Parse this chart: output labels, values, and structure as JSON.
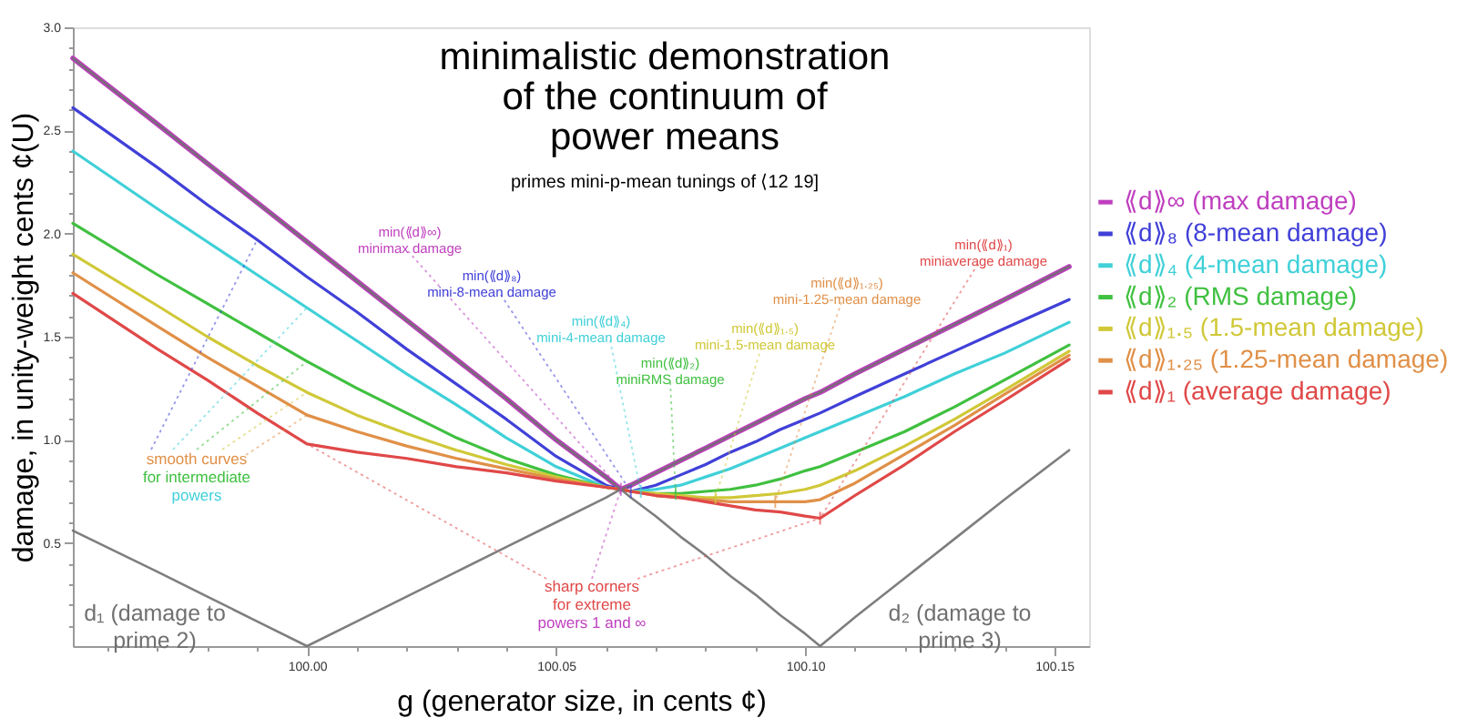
{
  "chart_data": {
    "type": "line",
    "title": "minimalistic demonstration\nof the continuum of\npower means",
    "subtitle": "primes mini-p-mean tunings of ⟨12 19]",
    "xlabel": "g (generator size, in cents ¢)",
    "ylabel": "damage, in unity-weight cents ¢(U)",
    "x": [
      99.953,
      99.97,
      99.98,
      99.99,
      100.0,
      100.01,
      100.02,
      100.03,
      100.04,
      100.05,
      100.06,
      100.063,
      100.065,
      100.07,
      100.075,
      100.08,
      100.085,
      100.09,
      100.095,
      100.1,
      100.103,
      100.11,
      100.12,
      100.13,
      100.14,
      100.153
    ],
    "series": [
      {
        "name": "⟪d⟫∞ (max damage)",
        "color": "#bf3fbf",
        "values": [
          2.85,
          2.53,
          2.34,
          2.15,
          1.96,
          1.77,
          1.58,
          1.39,
          1.2,
          1.0,
          0.82,
          0.76,
          0.78,
          0.84,
          0.9,
          0.96,
          1.02,
          1.08,
          1.14,
          1.2,
          1.23,
          1.32,
          1.44,
          1.56,
          1.68,
          1.84
        ]
      },
      {
        "name": "⟪d⟫₈ (8-mean damage)",
        "color": "#4040d8",
        "values": [
          2.61,
          2.32,
          2.14,
          1.97,
          1.79,
          1.62,
          1.44,
          1.27,
          1.1,
          0.92,
          0.78,
          0.76,
          0.75,
          0.78,
          0.83,
          0.88,
          0.94,
          0.99,
          1.05,
          1.1,
          1.13,
          1.21,
          1.32,
          1.43,
          1.54,
          1.68
        ]
      },
      {
        "name": "⟪d⟫₄ (4-mean damage)",
        "color": "#40d0d8",
        "values": [
          2.4,
          2.12,
          1.96,
          1.8,
          1.64,
          1.48,
          1.32,
          1.17,
          1.01,
          0.87,
          0.77,
          0.76,
          0.75,
          0.76,
          0.78,
          0.82,
          0.86,
          0.91,
          0.96,
          1.01,
          1.04,
          1.11,
          1.21,
          1.32,
          1.42,
          1.57
        ]
      },
      {
        "name": "⟪d⟫₂ (RMS damage)",
        "color": "#40c040",
        "values": [
          2.05,
          1.8,
          1.66,
          1.52,
          1.38,
          1.25,
          1.13,
          1.01,
          0.91,
          0.83,
          0.77,
          0.76,
          0.75,
          0.74,
          0.74,
          0.75,
          0.76,
          0.78,
          0.81,
          0.85,
          0.87,
          0.94,
          1.04,
          1.16,
          1.29,
          1.46
        ]
      },
      {
        "name": "⟪d⟫₁.₅ (1.5-mean damage)",
        "color": "#d0c838",
        "values": [
          1.9,
          1.65,
          1.5,
          1.36,
          1.23,
          1.12,
          1.03,
          0.95,
          0.88,
          0.82,
          0.77,
          0.76,
          0.75,
          0.74,
          0.73,
          0.72,
          0.72,
          0.73,
          0.74,
          0.76,
          0.78,
          0.85,
          0.97,
          1.1,
          1.24,
          1.43
        ]
      },
      {
        "name": "⟪d⟫₁.₂₅ (1.25-mean damage)",
        "color": "#e09048",
        "values": [
          1.81,
          1.55,
          1.4,
          1.26,
          1.12,
          1.04,
          0.97,
          0.91,
          0.86,
          0.81,
          0.77,
          0.76,
          0.75,
          0.73,
          0.72,
          0.71,
          0.7,
          0.7,
          0.7,
          0.7,
          0.71,
          0.79,
          0.93,
          1.07,
          1.22,
          1.41
        ]
      },
      {
        "name": "⟪d⟫₁ (average damage)",
        "color": "#e04848",
        "values": [
          1.71,
          1.44,
          1.29,
          1.13,
          0.98,
          0.94,
          0.91,
          0.87,
          0.84,
          0.8,
          0.77,
          0.76,
          0.75,
          0.73,
          0.72,
          0.7,
          0.68,
          0.66,
          0.65,
          0.63,
          0.62,
          0.73,
          0.88,
          1.04,
          1.19,
          1.39
        ]
      },
      {
        "color": "#707070",
        "values": [
          0.56,
          0.36,
          0.24,
          0.12,
          0,
          0.12,
          0.24,
          0.36,
          0.48,
          0.6,
          0.72,
          0.76,
          0.78,
          0.84,
          0.9,
          0.96,
          1.02,
          1.08,
          1.14,
          1.2,
          1.23,
          1.32,
          1.44,
          1.56,
          1.68,
          1.84
        ]
      },
      {
        "color": "#707070",
        "values": [
          2.85,
          2.53,
          2.34,
          2.15,
          1.96,
          1.77,
          1.58,
          1.39,
          1.2,
          1.0,
          0.82,
          0.76,
          0.72,
          0.63,
          0.53,
          0.44,
          0.34,
          0.25,
          0.15,
          0.06,
          0,
          0.14,
          0.33,
          0.52,
          0.71,
          0.95
        ]
      }
    ],
    "xlim": [
      99.953,
      100.157
    ],
    "ylim": [
      0,
      3
    ],
    "xticks": [
      {
        "value": 99.96,
        "label": null
      },
      {
        "value": 99.97,
        "label": null
      },
      {
        "value": 99.98,
        "label": null
      },
      {
        "value": 99.99,
        "label": null
      },
      {
        "value": 100.0,
        "label": "100.00"
      },
      {
        "value": 100.01,
        "label": null
      },
      {
        "value": 100.02,
        "label": null
      },
      {
        "value": 100.03,
        "label": null
      },
      {
        "value": 100.04,
        "label": null
      },
      100.05,
      {
        "value": 100.06,
        "label": null
      },
      {
        "value": 100.07,
        "label": null
      },
      {
        "value": 100.08,
        "label": null
      },
      {
        "value": 100.09,
        "label": null
      },
      {
        "value": 100.1,
        "label": "100.10"
      },
      {
        "value": 100.11,
        "label": null
      },
      {
        "value": 100.12,
        "label": null
      },
      {
        "value": 100.13,
        "label": null
      },
      {
        "value": 100.14,
        "label": null
      },
      100.15
    ],
    "yticks": [
      {
        "value": 0.1,
        "label": null
      },
      {
        "value": 0.2,
        "label": null
      },
      {
        "value": 0.3,
        "label": null
      },
      {
        "value": 0.4,
        "label": null
      },
      0.5,
      {
        "value": 0.6,
        "label": null
      },
      {
        "value": 0.7,
        "label": null
      },
      {
        "value": 0.8,
        "label": null
      },
      {
        "value": 0.9,
        "label": null
      },
      {
        "value": 1,
        "label": "1.0"
      },
      {
        "value": 1.1,
        "label": null
      },
      {
        "value": 1.2,
        "label": null
      },
      {
        "value": 1.3,
        "label": null
      },
      {
        "value": 1.4,
        "label": null
      },
      1.5,
      {
        "value": 1.6,
        "label": null
      },
      {
        "value": 1.7,
        "label": null
      },
      {
        "value": 1.8,
        "label": null
      },
      {
        "value": 1.9,
        "label": null
      },
      {
        "value": 2,
        "label": "2.0"
      },
      {
        "value": 2.1,
        "label": null
      },
      {
        "value": 2.2,
        "label": null
      },
      {
        "value": 2.3,
        "label": null
      },
      {
        "value": 2.4,
        "label": null
      },
      2.5,
      {
        "value": 2.6,
        "label": null
      },
      {
        "value": 2.7,
        "label": null
      },
      {
        "value": 2.8,
        "label": null
      },
      {
        "value": 2.9,
        "label": null
      },
      {
        "value": 3,
        "label": "3.0"
      }
    ],
    "legend": "right",
    "annotations": [
      {
        "text": "min(⟪d⟫∞)\nminimax damage",
        "x": 100.063,
        "y": 0.76
      },
      {
        "text": "min(⟪d⟫₈)\nmini-8-mean damage",
        "x": 100.065,
        "y": 0.75
      },
      {
        "text": "min(⟪d⟫₄)\nmini-4-mean damage",
        "x": 100.067,
        "y": 0.75
      },
      {
        "text": "min(⟪d⟫₂)\nminiRMS damage",
        "x": 100.074,
        "y": 0.74
      },
      {
        "text": "min(⟪d⟫₁.₅)\nmini-1.5-mean damage",
        "x": 100.082,
        "y": 0.72
      },
      {
        "text": "min(⟪d⟫₁.₂₅)\nmini-1.25-mean damage",
        "x": 100.094,
        "y": 0.7
      },
      {
        "text": "min(⟪d⟫₁)\nminiaverage damage",
        "x": 100.103,
        "y": 0.62
      },
      {
        "text": "smooth curves\nfor intermediate\npowers",
        "x": 100.0,
        "y": 1.38
      },
      {
        "text": "sharp corners\nfor extreme\npowers 1 and ∞",
        "x": 100.063,
        "y": 0.76
      },
      "d₁ (damage to\nprime 2)",
      "d₂ (damage to\nprime 3)"
    ]
  }
}
